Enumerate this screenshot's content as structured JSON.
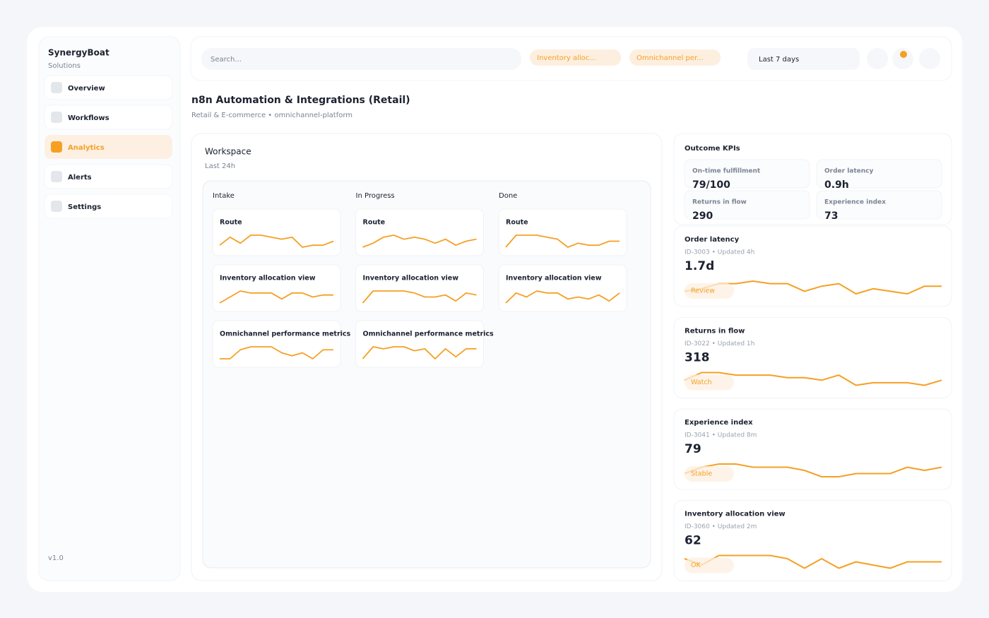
{
  "sidebar": {
    "brand": "SynergyBoat",
    "tagline": "Solutions",
    "nav": [
      "Overview",
      "Workflows",
      "Analytics",
      "Alerts",
      "Settings"
    ],
    "active_nav": 2,
    "version": "v1.0"
  },
  "topbar": {
    "search_placeholder": "Search...",
    "chips": [
      "Inventory alloc...",
      "Omnichannel per..."
    ],
    "range": "Last 7 days"
  },
  "header": {
    "title": "n8n Automation & Integrations (Retail)",
    "subtitle": "Retail & E-commerce • omnichannel-platform"
  },
  "workspace": {
    "title": "Workspace",
    "subtitle": "Last 24h",
    "columns": [
      {
        "name": "Intake",
        "cards": [
          {
            "title": "Route",
            "spark": [
              3,
              7,
              4,
              8,
              8,
              7,
              6,
              7,
              2,
              3,
              3,
              5
            ]
          },
          {
            "title": "Inventory allocation view",
            "spark": [
              2,
              5,
              8,
              7,
              7,
              7,
              4,
              7,
              7,
              5,
              6,
              6
            ]
          },
          {
            "title": "Omnichannel performance metrics",
            "spark": [
              3,
              3,
              6,
              7,
              7,
              7,
              5,
              4,
              5,
              3,
              6,
              6
            ]
          }
        ]
      },
      {
        "name": "In Progress",
        "cards": [
          {
            "title": "Route",
            "spark": [
              2,
              4,
              7,
              8,
              6,
              7,
              6,
              4,
              6,
              3,
              5,
              6
            ]
          },
          {
            "title": "Inventory allocation view",
            "spark": [
              2,
              8,
              8,
              8,
              8,
              7,
              5,
              5,
              6,
              3,
              7,
              6
            ]
          },
          {
            "title": "Omnichannel performance metrics",
            "spark": [
              2,
              8,
              7,
              8,
              8,
              6,
              7,
              2,
              7,
              3,
              7,
              7
            ]
          }
        ]
      },
      {
        "name": "Done",
        "cards": [
          {
            "title": "Route",
            "spark": [
              2,
              8,
              8,
              8,
              7,
              6,
              2,
              4,
              3,
              3,
              5,
              5
            ]
          },
          {
            "title": "Inventory allocation view",
            "spark": [
              2,
              7,
              5,
              8,
              7,
              7,
              4,
              5,
              4,
              6,
              3,
              7
            ]
          }
        ]
      }
    ]
  },
  "kpis": {
    "title": "Outcome KPIs",
    "items": [
      {
        "label": "On-time fulfillment",
        "value": "79/100"
      },
      {
        "label": "Order latency",
        "value": "0.9h"
      },
      {
        "label": "Returns in flow",
        "value": "290"
      },
      {
        "label": "Experience index",
        "value": "73"
      }
    ]
  },
  "metrics": [
    {
      "title": "Order latency",
      "meta": "ID-3003 • Updated 4h",
      "value": "1.7d",
      "status": "Review",
      "spark": [
        2,
        3,
        5,
        5,
        6,
        5,
        5,
        2,
        4,
        5,
        1,
        3,
        2,
        1,
        4,
        4
      ]
    },
    {
      "title": "Returns in flow",
      "meta": "ID-3022 • Updated 1h",
      "value": "318",
      "status": "Watch",
      "spark": [
        3,
        6,
        6,
        5,
        5,
        5,
        4,
        4,
        3,
        5,
        1,
        2,
        2,
        2,
        1,
        3
      ]
    },
    {
      "title": "Experience index",
      "meta": "ID-3041 • Updated 8m",
      "value": "79",
      "status": "Stable",
      "spark": [
        3,
        5,
        6,
        6,
        5,
        5,
        5,
        4,
        2,
        2,
        3,
        3,
        3,
        5,
        4,
        5
      ]
    },
    {
      "title": "Inventory allocation view",
      "meta": "ID-3060 • Updated 2m",
      "value": "62",
      "status": "OK",
      "spark": [
        4,
        2,
        5,
        5,
        5,
        5,
        4,
        1,
        4,
        1,
        3,
        2,
        1,
        3,
        3,
        3
      ]
    }
  ]
}
